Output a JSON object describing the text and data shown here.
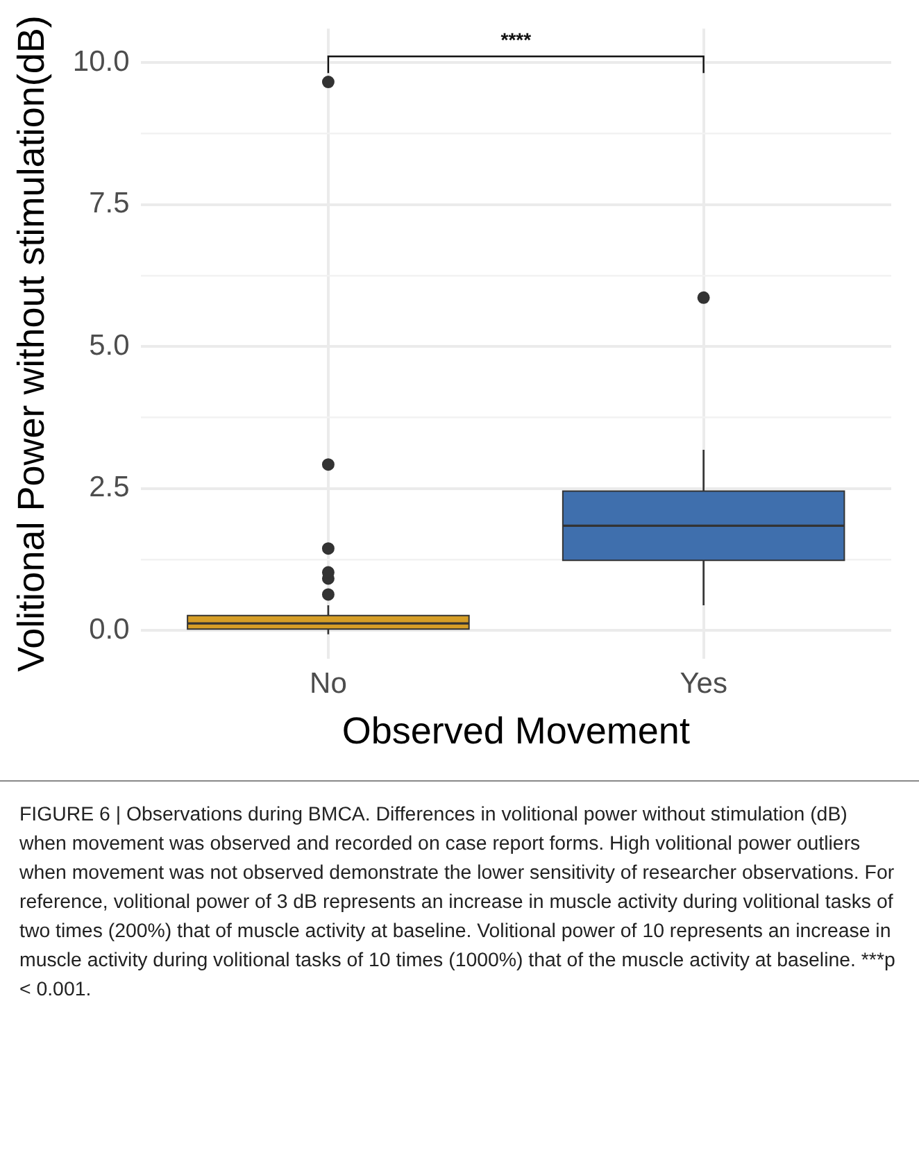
{
  "chart_data": {
    "type": "box",
    "xlabel": "Observed Movement",
    "ylabel": "Volitional Power without stimulation(dB)",
    "categories": [
      "No",
      "Yes"
    ],
    "colors": [
      "#d69e26",
      "#3f6fad"
    ],
    "boxes": [
      {
        "low": -0.07,
        "q1": 0.02,
        "median": 0.12,
        "q3": 0.26,
        "high": 0.44,
        "outliers": [
          0.63,
          0.91,
          1.02,
          1.44,
          2.92,
          9.66
        ]
      },
      {
        "low": 0.44,
        "q1": 1.23,
        "median": 1.84,
        "q3": 2.45,
        "high": 3.18,
        "outliers": [
          5.86
        ]
      }
    ],
    "ylim": [
      -0.5,
      10.6
    ],
    "yticks": [
      {
        "value": 0,
        "label": "0.0"
      },
      {
        "value": 1.25,
        "label": null
      },
      2.5,
      {
        "value": 3.75,
        "label": null
      },
      {
        "value": 5,
        "label": "5.0"
      },
      {
        "value": 6.25,
        "label": null
      },
      7.5,
      {
        "value": 8.75,
        "label": null
      },
      {
        "value": 10,
        "label": "10.0"
      }
    ],
    "grid": true,
    "annotations": [
      "****",
      "FIGURE 6 | Observations during BMCA. Differences in volitional power without stimulation (dB) when movement was observed and recorded on case report forms. High volitional power outliers when movement was not observed demonstrate the lower sensitivity of researcher observations. For reference, volitional power of 3 dB represents an increase in muscle activity during volitional tasks of two times (200%) that of muscle activity at baseline. Volitional power of 10 represents an increase in muscle activity during volitional tasks of 10 times (1000%) that of the muscle activity at baseline. ***p < 0.001."
    ]
  }
}
